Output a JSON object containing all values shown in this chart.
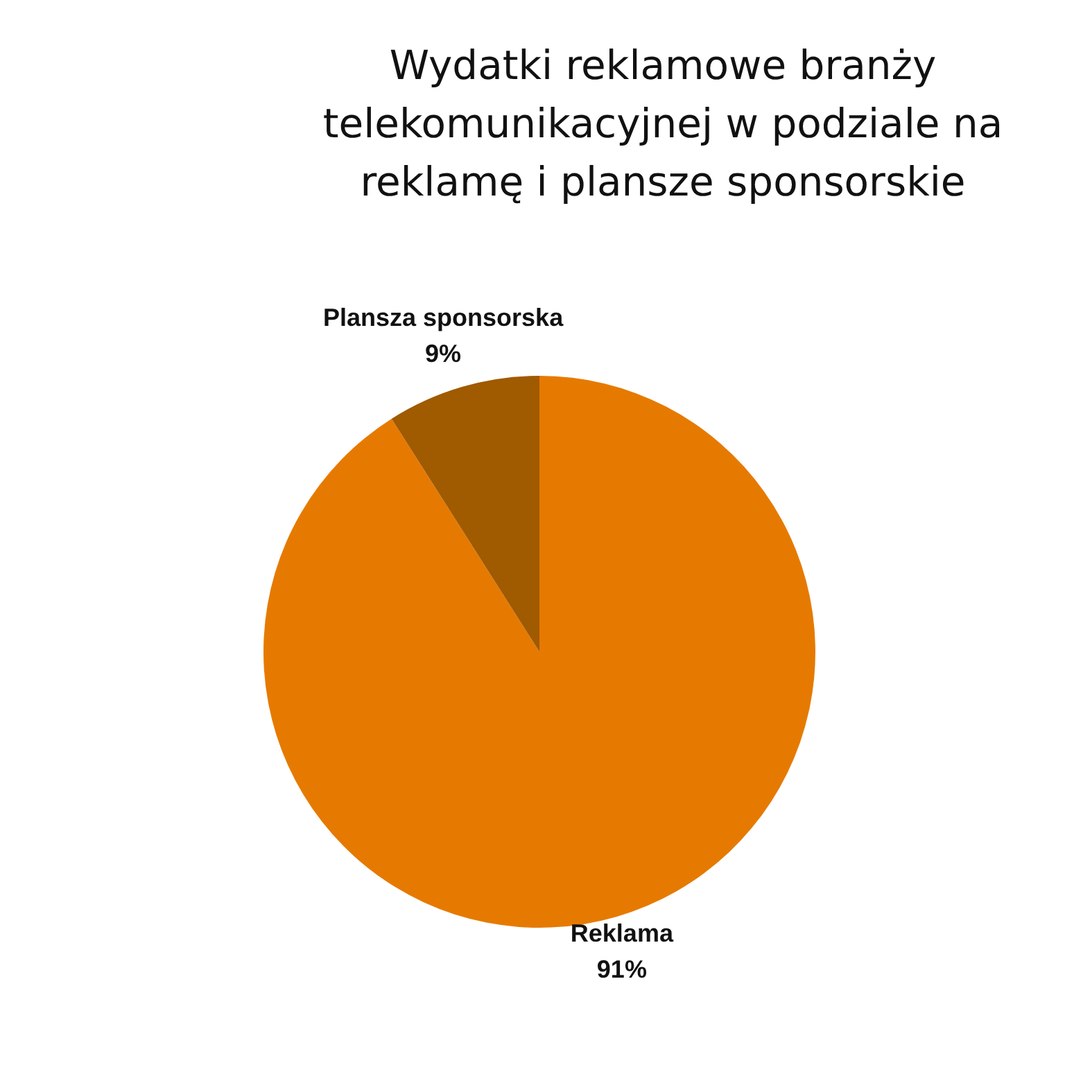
{
  "chart_data": {
    "type": "pie",
    "title": "Wydatki reklamowe branży telekomunikacyjnej w podziale na reklamę i plansze sponsorskie",
    "categories": [
      "Reklama",
      "Plansza sponsorska"
    ],
    "values": [
      91,
      9
    ],
    "value_labels": [
      "91%",
      "9%"
    ],
    "colors": [
      "#e67a00",
      "#a05a00"
    ]
  }
}
